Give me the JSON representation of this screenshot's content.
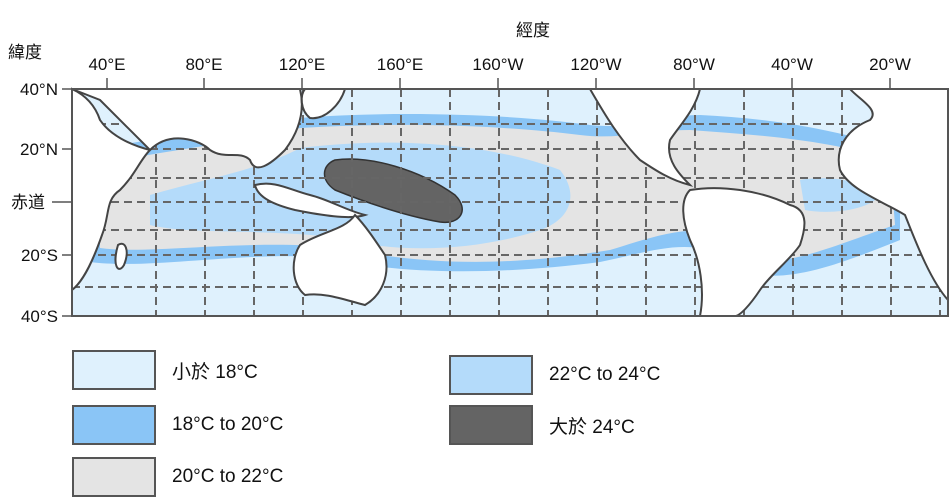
{
  "axes": {
    "x_title": "經度",
    "y_title": "緯度",
    "x_ticks": [
      "40°E",
      "80°E",
      "120°E",
      "160°E",
      "160°W",
      "120°W",
      "80°W",
      "40°W",
      "20°W"
    ],
    "y_ticks": [
      "40°N",
      "20°N",
      "赤道",
      "20°S",
      "40°S"
    ]
  },
  "legend": [
    {
      "label": "小於 18°C",
      "color": "#dff1fd"
    },
    {
      "label": "18°C to 20°C",
      "color": "#8ac5f6"
    },
    {
      "label": "20°C to 22°C",
      "color": "#e4e4e4"
    },
    {
      "label": "22°C to 24°C",
      "color": "#b4dbfa"
    },
    {
      "label": "大於 24°C",
      "color": "#646464"
    }
  ],
  "colors": {
    "land": "#ffffff",
    "coast": "#444444",
    "grid": "#666666"
  }
}
